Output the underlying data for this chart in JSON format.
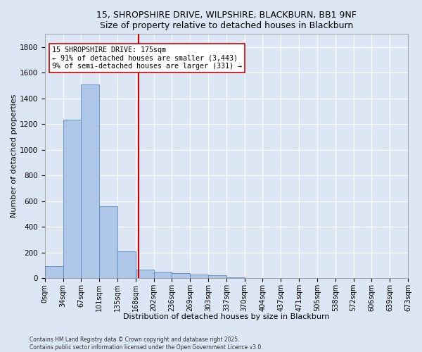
{
  "title_line1": "15, SHROPSHIRE DRIVE, WILPSHIRE, BLACKBURN, BB1 9NF",
  "title_line2": "Size of property relative to detached houses in Blackburn",
  "xlabel": "Distribution of detached houses by size in Blackburn",
  "ylabel": "Number of detached properties",
  "bar_color": "#aec6e8",
  "bar_edge_color": "#5588bb",
  "background_color": "#dce6f5",
  "grid_color": "#ffffff",
  "bin_labels": [
    "0sqm",
    "34sqm",
    "67sqm",
    "101sqm",
    "135sqm",
    "168sqm",
    "202sqm",
    "236sqm",
    "269sqm",
    "303sqm",
    "337sqm",
    "370sqm",
    "404sqm",
    "437sqm",
    "471sqm",
    "505sqm",
    "538sqm",
    "572sqm",
    "606sqm",
    "639sqm",
    "673sqm"
  ],
  "bar_heights": [
    95,
    1235,
    1510,
    560,
    210,
    65,
    48,
    40,
    30,
    25,
    5,
    0,
    0,
    0,
    0,
    0,
    0,
    0,
    0,
    0
  ],
  "ylim": [
    0,
    1900
  ],
  "yticks": [
    0,
    200,
    400,
    600,
    800,
    1000,
    1200,
    1400,
    1600,
    1800
  ],
  "vline_index": 5.15,
  "vline_color": "#cc0000",
  "annotation_text": "15 SHROPSHIRE DRIVE: 175sqm\n← 91% of detached houses are smaller (3,443)\n9% of semi-detached houses are larger (331) →",
  "annotation_box_color": "#ffffff",
  "annotation_box_edge": "#cc0000",
  "footnote1": "Contains HM Land Registry data © Crown copyright and database right 2025.",
  "footnote2": "Contains public sector information licensed under the Open Government Licence v3.0."
}
